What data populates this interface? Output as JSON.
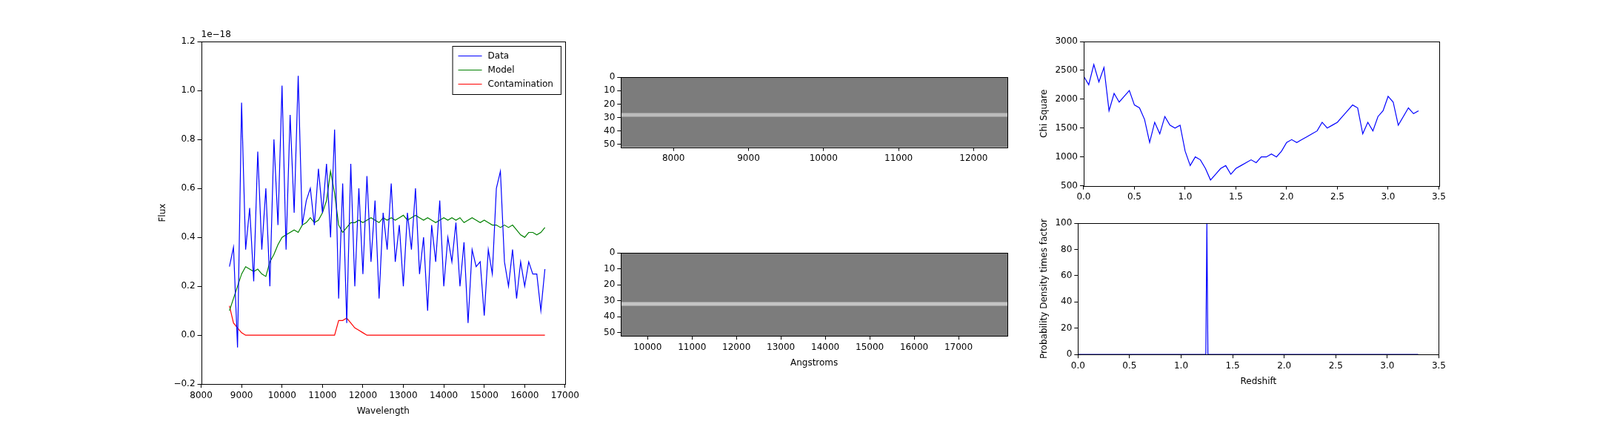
{
  "chart_data": [
    {
      "type": "line",
      "y_label": "Flux",
      "x_label": "Wavelength",
      "annotation": "1e−18",
      "xlim": [
        8000,
        17000
      ],
      "xticks": [
        8000,
        9000,
        10000,
        11000,
        12000,
        13000,
        14000,
        15000,
        16000,
        17000
      ],
      "ylim": [
        -0.2,
        1.2
      ],
      "yticks": [
        {
          "value": -0.2,
          "label": "−0.2"
        },
        {
          "value": 0,
          "label": "0.0"
        },
        0.2,
        0.4,
        0.6,
        0.8,
        {
          "value": 1,
          "label": "1.0"
        },
        1.2
      ],
      "grid": false,
      "legend": "upper right",
      "x": [
        8700,
        8800,
        8900,
        9000,
        9100,
        9200,
        9300,
        9400,
        9500,
        9600,
        9700,
        9800,
        9900,
        10000,
        10100,
        10200,
        10300,
        10400,
        10500,
        10600,
        10700,
        10800,
        10900,
        11000,
        11100,
        11200,
        11300,
        11400,
        11500,
        11600,
        11700,
        11800,
        11900,
        12000,
        12100,
        12200,
        12300,
        12400,
        12500,
        12600,
        12700,
        12800,
        12900,
        13000,
        13100,
        13200,
        13300,
        13400,
        13500,
        13600,
        13700,
        13800,
        13900,
        14000,
        14100,
        14200,
        14300,
        14400,
        14500,
        14600,
        14700,
        14800,
        14900,
        15000,
        15100,
        15200,
        15300,
        15400,
        15500,
        15600,
        15700,
        15800,
        15900,
        16000,
        16100,
        16200,
        16300,
        16400,
        16500
      ],
      "series": [
        {
          "name": "Data",
          "color": "#0000ff",
          "values": [
            0.28,
            0.36,
            -0.05,
            0.95,
            0.35,
            0.52,
            0.22,
            0.75,
            0.35,
            0.6,
            0.2,
            0.8,
            0.45,
            1.02,
            0.35,
            0.9,
            0.5,
            1.06,
            0.45,
            0.55,
            0.6,
            0.45,
            0.68,
            0.5,
            0.7,
            0.4,
            0.84,
            0.15,
            0.62,
            0.05,
            0.7,
            0.2,
            0.6,
            0.25,
            0.65,
            0.3,
            0.55,
            0.15,
            0.5,
            0.35,
            0.62,
            0.3,
            0.45,
            0.2,
            0.5,
            0.35,
            0.6,
            0.25,
            0.4,
            0.1,
            0.45,
            0.3,
            0.55,
            0.2,
            0.4,
            0.3,
            0.46,
            0.2,
            0.38,
            0.05,
            0.35,
            0.28,
            0.3,
            0.08,
            0.35,
            0.25,
            0.6,
            0.67,
            0.3,
            0.2,
            0.35,
            0.15,
            0.3,
            0.2,
            0.3,
            0.25,
            0.25,
            0.1,
            0.27
          ]
        },
        {
          "name": "Model",
          "color": "#008000",
          "values": [
            0.1,
            0.15,
            0.2,
            0.25,
            0.28,
            0.27,
            0.26,
            0.27,
            0.25,
            0.24,
            0.3,
            0.33,
            0.37,
            0.4,
            0.41,
            0.42,
            0.43,
            0.42,
            0.45,
            0.46,
            0.48,
            0.46,
            0.47,
            0.5,
            0.55,
            0.67,
            0.58,
            0.45,
            0.42,
            0.44,
            0.46,
            0.46,
            0.47,
            0.46,
            0.47,
            0.48,
            0.47,
            0.46,
            0.48,
            0.47,
            0.48,
            0.47,
            0.48,
            0.49,
            0.47,
            0.48,
            0.49,
            0.48,
            0.47,
            0.48,
            0.47,
            0.46,
            0.47,
            0.48,
            0.47,
            0.48,
            0.47,
            0.48,
            0.46,
            0.47,
            0.48,
            0.47,
            0.46,
            0.47,
            0.46,
            0.45,
            0.45,
            0.44,
            0.45,
            0.44,
            0.45,
            0.43,
            0.41,
            0.4,
            0.42,
            0.42,
            0.41,
            0.42,
            0.44
          ]
        },
        {
          "name": "Contamination",
          "color": "#ff0000",
          "values": [
            0.12,
            0.05,
            0.03,
            0.01,
            0,
            0,
            0,
            0,
            0,
            0,
            0,
            0,
            0,
            0,
            0,
            0,
            0,
            0,
            0,
            0,
            0,
            0,
            0,
            0,
            0,
            0,
            0,
            0.06,
            0.06,
            0.07,
            0.05,
            0.03,
            0.02,
            0.01,
            0,
            0,
            0,
            0,
            0,
            0,
            0,
            0,
            0,
            0,
            0,
            0,
            0,
            0,
            0,
            0,
            0,
            0,
            0,
            0,
            0,
            0,
            0,
            0,
            0,
            0,
            0,
            0,
            0,
            0,
            0,
            0,
            0,
            0,
            0,
            0,
            0,
            0,
            0,
            0,
            0,
            0,
            0,
            0,
            0
          ]
        }
      ]
    },
    {
      "type": "image",
      "color": "#7c7c7c",
      "grid": false,
      "xlim": [
        7300,
        12450
      ],
      "xticks": [
        8000,
        9000,
        10000,
        11000,
        12000
      ],
      "ylim": [
        52,
        0
      ],
      "yticks": [
        0,
        10,
        20,
        30,
        40,
        50
      ],
      "series": [
        {
          "color": "#bcbcbc",
          "x": [
            7300,
            12450
          ],
          "values": [
            28,
            28
          ]
        }
      ]
    },
    {
      "type": "image",
      "color": "#7c7c7c",
      "grid": false,
      "x_label": "Angstroms",
      "xlim": [
        9400,
        18100
      ],
      "xticks": [
        10000,
        11000,
        12000,
        13000,
        14000,
        15000,
        16000,
        17000
      ],
      "ylim": [
        52,
        0
      ],
      "yticks": [
        0,
        10,
        20,
        30,
        40,
        50
      ],
      "series": [
        {
          "color": "#c4c4c4",
          "x": [
            9400,
            18100
          ],
          "values": [
            32,
            32
          ]
        }
      ]
    },
    {
      "type": "line",
      "y_label": "Chi Square",
      "grid": false,
      "xlim": [
        0,
        3.5
      ],
      "xticks": [
        {
          "value": 0,
          "label": "0.0"
        },
        0.5,
        {
          "value": 1,
          "label": "1.0"
        },
        1.5,
        {
          "value": 2,
          "label": "2.0"
        },
        2.5,
        {
          "value": 3,
          "label": "3.0"
        },
        3.5
      ],
      "ylim": [
        500,
        3000
      ],
      "yticks": [
        500,
        1000,
        1500,
        2000,
        2500,
        3000
      ],
      "x": [
        0,
        0.05,
        0.1,
        0.15,
        0.2,
        0.25,
        0.3,
        0.35,
        0.4,
        0.45,
        0.5,
        0.55,
        0.6,
        0.65,
        0.7,
        0.75,
        0.8,
        0.85,
        0.9,
        0.95,
        1,
        1.05,
        1.1,
        1.15,
        1.2,
        1.25,
        1.3,
        1.35,
        1.4,
        1.45,
        1.5,
        1.55,
        1.6,
        1.65,
        1.7,
        1.75,
        1.8,
        1.85,
        1.9,
        1.95,
        2,
        2.05,
        2.1,
        2.15,
        2.2,
        2.25,
        2.3,
        2.35,
        2.4,
        2.45,
        2.5,
        2.55,
        2.6,
        2.65,
        2.7,
        2.75,
        2.8,
        2.85,
        2.9,
        2.95,
        3,
        3.05,
        3.1,
        3.15,
        3.2,
        3.25,
        3.3
      ],
      "series": [
        {
          "color": "#0000ff",
          "values": [
            2400,
            2250,
            2600,
            2300,
            2550,
            1800,
            2100,
            1950,
            2050,
            2150,
            1900,
            1850,
            1650,
            1250,
            1600,
            1400,
            1700,
            1550,
            1500,
            1550,
            1100,
            850,
            1000,
            950,
            800,
            600,
            700,
            800,
            850,
            700,
            800,
            850,
            900,
            950,
            900,
            1000,
            1000,
            1050,
            1000,
            1100,
            1250,
            1300,
            1250,
            1300,
            1350,
            1400,
            1450,
            1600,
            1500,
            1550,
            1600,
            1700,
            1800,
            1900,
            1850,
            1400,
            1600,
            1450,
            1700,
            1800,
            2050,
            1950,
            1550,
            1700,
            1850,
            1750,
            1800
          ]
        }
      ]
    },
    {
      "type": "line",
      "y_label": "Probability Density times factor",
      "x_label": "Redshift",
      "grid": false,
      "xlim": [
        0,
        3.5
      ],
      "xticks": [
        {
          "value": 0,
          "label": "0.0"
        },
        0.5,
        {
          "value": 1,
          "label": "1.0"
        },
        1.5,
        {
          "value": 2,
          "label": "2.0"
        },
        2.5,
        {
          "value": 3,
          "label": "3.0"
        },
        3.5
      ],
      "ylim": [
        0,
        100
      ],
      "yticks": [
        0,
        20,
        40,
        60,
        80,
        100
      ],
      "x": [
        0,
        1.2,
        1.24,
        1.25,
        1.26,
        1.3,
        3.3
      ],
      "series": [
        {
          "color": "#0000ff",
          "values": [
            0,
            0,
            0,
            100,
            0,
            0,
            0
          ]
        }
      ]
    }
  ]
}
